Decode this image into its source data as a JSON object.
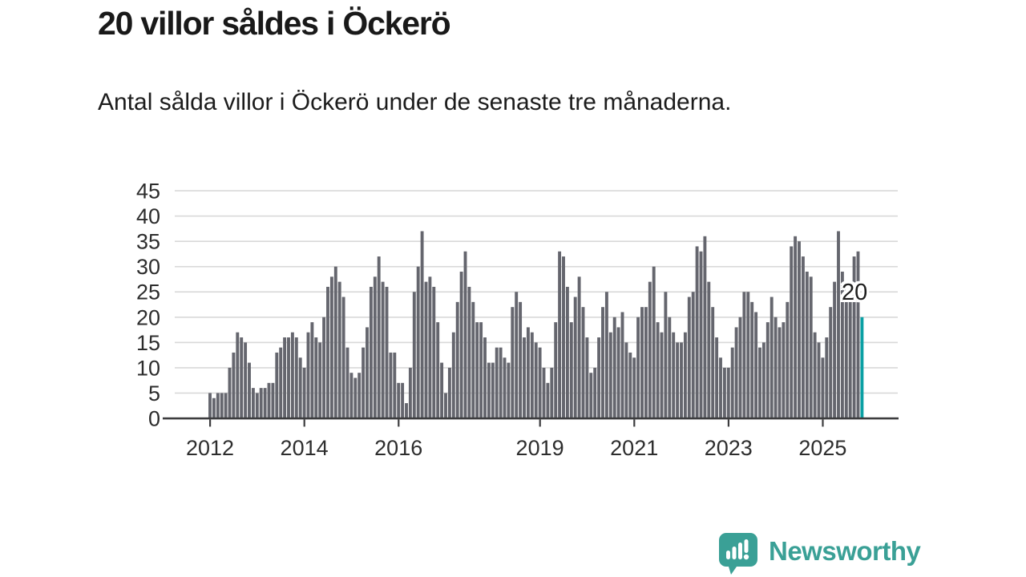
{
  "header": {
    "title": "20 villor såldes i Öckerö",
    "subtitle": "Antal sålda villor i Öckerö under de senaste tre månaderna."
  },
  "chart_data": {
    "type": "bar",
    "title": "20 villor såldes i Öckerö",
    "subtitle": "Antal sålda villor i Öckerö under de senaste tre månaderna.",
    "granularity": "monthly",
    "x_axis": {
      "start_year": 2012,
      "tick_labels": [
        "2012",
        "2014",
        "2016",
        "2019",
        "2021",
        "2023",
        "2025"
      ]
    },
    "y_axis": {
      "tick_labels": [
        0,
        5,
        10,
        15,
        20,
        25,
        30,
        35,
        40,
        45
      ],
      "ylim": [
        0,
        45
      ],
      "grid": true
    },
    "series": [
      {
        "name": "Antal sålda villor",
        "start_label": "2012",
        "values": [
          5,
          4,
          5,
          5,
          5,
          10,
          13,
          17,
          16,
          15,
          11,
          6,
          5,
          6,
          6,
          7,
          7,
          13,
          14,
          16,
          16,
          17,
          16,
          12,
          10,
          17,
          19,
          16,
          15,
          20,
          26,
          28,
          30,
          27,
          24,
          14,
          9,
          8,
          9,
          14,
          18,
          26,
          28,
          32,
          27,
          26,
          13,
          13,
          7,
          7,
          3,
          10,
          25,
          30,
          37,
          27,
          28,
          26,
          19,
          11,
          5,
          10,
          17,
          23,
          29,
          33,
          26,
          23,
          19,
          19,
          16,
          11,
          11,
          14,
          14,
          12,
          11,
          22,
          25,
          23,
          16,
          18,
          17,
          15,
          14,
          10,
          7,
          10,
          19,
          33,
          32,
          26,
          19,
          24,
          28,
          22,
          16,
          9,
          10,
          16,
          22,
          25,
          17,
          20,
          18,
          21,
          15,
          13,
          12,
          20,
          22,
          22,
          27,
          30,
          19,
          17,
          25,
          20,
          17,
          15,
          15,
          17,
          24,
          25,
          34,
          33,
          36,
          27,
          22,
          16,
          12,
          10,
          10,
          14,
          18,
          20,
          25,
          25,
          23,
          21,
          14,
          15,
          19,
          24,
          20,
          18,
          19,
          23,
          34,
          36,
          35,
          32,
          29,
          28,
          17,
          15,
          12,
          16,
          22,
          27,
          37,
          29,
          27,
          26,
          32,
          33,
          20
        ]
      }
    ],
    "highlight": {
      "position": "last-bar",
      "value": 20,
      "label": "20"
    },
    "legend": "none"
  },
  "branding": {
    "logo_text": "Newsworthy"
  },
  "colors": {
    "bar": "#65666e",
    "highlight": "#0aa0a4",
    "grid": "#d8d8d8",
    "axis": "#3c3c3e",
    "text": "#2d2d2d",
    "logo": "#3aa096"
  }
}
